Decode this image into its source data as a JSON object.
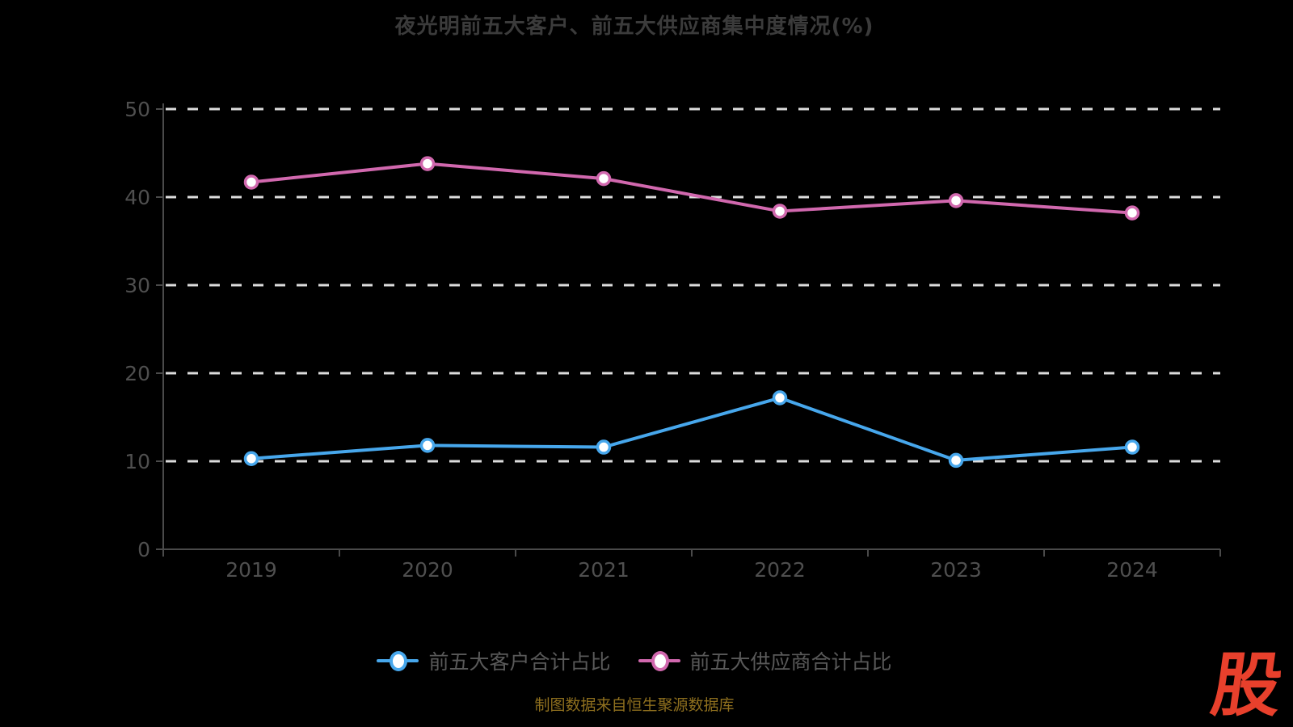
{
  "title": "夜光明前五大客户、前五大供应商集中度情况(%)",
  "caption": "制图数据来自恒生聚源数据库",
  "logo_text": "股",
  "colors": {
    "background": "#000000",
    "title": "#3b3b3b",
    "axis": "#4a4a4a",
    "tick_label": "#4f4f4f",
    "gridline": "#dcdcdc",
    "legend_text": "#595959",
    "caption": "#8e6f1e",
    "logo": "#e8402c",
    "marker_fill": "#ffffff"
  },
  "chart_data": {
    "type": "line",
    "title": "夜光明前五大客户、前五大供应商集中度情况(%)",
    "categories": [
      "2019",
      "2020",
      "2021",
      "2022",
      "2023",
      "2024"
    ],
    "series": [
      {
        "name": "前五大客户合计占比",
        "color": "#47a7ec",
        "values": [
          10.3,
          11.8,
          11.6,
          17.2,
          10.1,
          11.6
        ]
      },
      {
        "name": "前五大供应商合计占比",
        "color": "#d168ae",
        "values": [
          41.7,
          43.8,
          42.1,
          38.4,
          39.6,
          38.2
        ]
      }
    ],
    "xlabel": "",
    "ylabel": "",
    "ylim": [
      0,
      50
    ],
    "yticks": [
      0,
      10,
      20,
      30,
      40,
      50
    ],
    "grid": "horizontal dashed white lines",
    "legend_position": "bottom center",
    "marker": "circle with white fill"
  }
}
